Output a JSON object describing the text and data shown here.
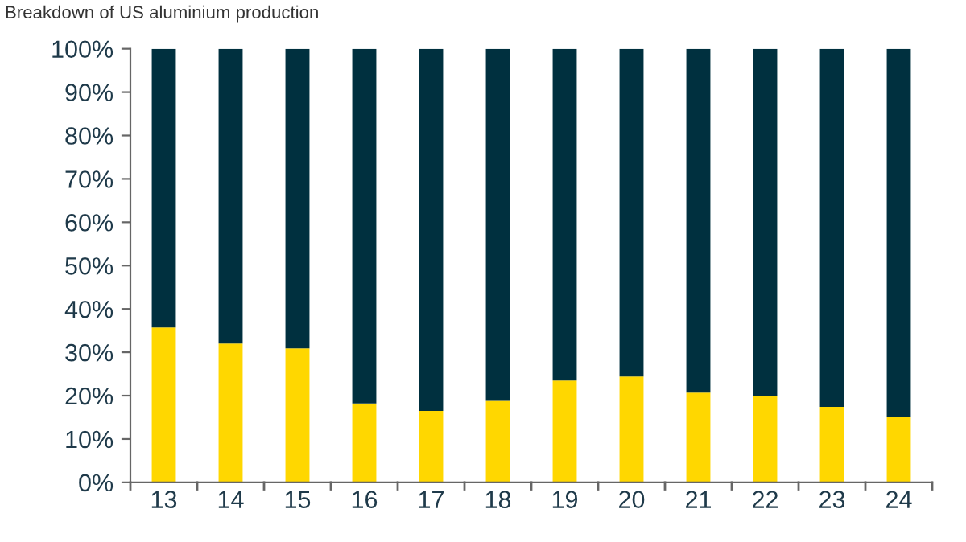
{
  "chart_data": {
    "type": "bar",
    "title": "Breakdown of US aluminium production",
    "stacked": true,
    "categories": [
      "13",
      "14",
      "15",
      "16",
      "17",
      "18",
      "19",
      "20",
      "21",
      "22",
      "23",
      "24"
    ],
    "series": [
      {
        "color": "#ffd700",
        "values": [
          35.7,
          32.0,
          30.9,
          18.2,
          16.5,
          18.8,
          23.5,
          24.4,
          20.7,
          19.8,
          17.4,
          15.2
        ]
      },
      {
        "color": "#00303f",
        "values": [
          64.3,
          68.0,
          69.1,
          81.8,
          83.5,
          81.2,
          76.5,
          75.6,
          79.3,
          80.2,
          82.6,
          84.8
        ]
      }
    ],
    "ylim": [
      0,
      100
    ],
    "yticks": [
      {
        "value": 0,
        "label": "0%"
      },
      {
        "value": 10,
        "label": "10%"
      },
      {
        "value": 20,
        "label": "20%"
      },
      {
        "value": 30,
        "label": "30%"
      },
      {
        "value": 40,
        "label": "40%"
      },
      {
        "value": 50,
        "label": "50%"
      },
      {
        "value": 60,
        "label": "60%"
      },
      {
        "value": 70,
        "label": "70%"
      },
      {
        "value": 80,
        "label": "80%"
      },
      {
        "value": 90,
        "label": "90%"
      },
      {
        "value": 100,
        "label": "100%"
      }
    ],
    "grid": false,
    "legend": false
  }
}
